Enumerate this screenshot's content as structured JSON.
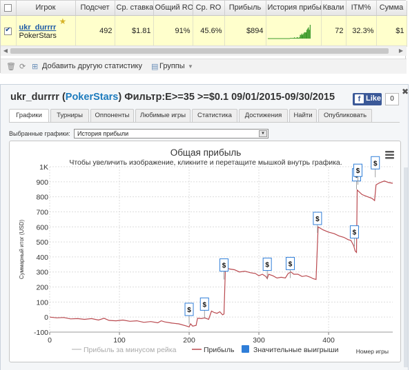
{
  "table": {
    "headers": [
      "",
      "Игрок",
      "Подсчет",
      "Ср. ставка",
      "Общий RO",
      "Ср. RO",
      "Прибыль",
      "История прибы",
      "Квали",
      "ITM%",
      "Сумма"
    ],
    "row": {
      "checked": true,
      "player": "ukr_durrrr",
      "site": "PokerStars",
      "count": "492",
      "avg_stake": "$1.81",
      "total_roi": "91%",
      "avg_roi": "45.6%",
      "profit": "$894",
      "qualified": "72",
      "itm": "32.3%",
      "sum": "$1"
    },
    "sparkline": [
      0,
      0,
      0,
      0,
      0,
      1,
      0,
      0,
      1,
      1,
      0,
      1,
      3,
      3,
      4,
      3,
      4,
      5,
      5,
      5,
      7,
      8,
      9,
      7,
      11
    ]
  },
  "toolbar": {
    "add_stats": "Добавить другую статистику",
    "groups": "Группы"
  },
  "panel": {
    "title_player": "ukr_durrrr",
    "title_site": "PokerStars",
    "title_filter": "Фильтр:E>=35 >=$0.1 09/01/2015-09/30/2015",
    "fb_like": "Like",
    "fb_count": "0",
    "tabs": [
      "Графики",
      "Турниры",
      "Оппоненты",
      "Любимые игры",
      "Статистика",
      "Достижения",
      "Найти",
      "Опубликовать"
    ],
    "active_tab": 0,
    "select_label": "Выбранные графики:",
    "select_value": "История прибыли"
  },
  "colors": {
    "profit_line": "#b9484e",
    "rake_line": "#c8c8c8",
    "marker": "#2f7ed8",
    "link": "#1d5aa6",
    "row_highlight": "#ffffcc"
  },
  "chart_data": {
    "type": "line",
    "title": "Общая прибыль",
    "subtitle": "Чтобы увеличить изображение, кликните и перетащите мышкой внутрь графика.",
    "xlabel": "Номер игры",
    "ylabel": "Суммарный итог (USD)",
    "xlim": [
      0,
      492
    ],
    "ylim": [
      -100,
      1000
    ],
    "x_ticks": [
      0,
      100,
      200,
      300,
      400
    ],
    "y_ticks": [
      -100,
      0,
      100,
      200,
      300,
      400,
      500,
      600,
      700,
      800,
      900,
      1000
    ],
    "y_tick_labels": [
      "-100",
      "0",
      "100",
      "200",
      "300",
      "400",
      "500",
      "600",
      "700",
      "800",
      "900",
      "1K"
    ],
    "grid": true,
    "legend": [
      "Прибыль за минусом рейка",
      "Прибыль",
      "Значительные выигрыши"
    ],
    "legend_position": "bottom",
    "series": [
      {
        "name": "Прибыль",
        "points": [
          [
            0,
            0
          ],
          [
            10,
            -5
          ],
          [
            20,
            -3
          ],
          [
            30,
            -12
          ],
          [
            40,
            -10
          ],
          [
            50,
            -15
          ],
          [
            60,
            -10
          ],
          [
            70,
            -20
          ],
          [
            78,
            -8
          ],
          [
            85,
            -22
          ],
          [
            95,
            -25
          ],
          [
            105,
            -20
          ],
          [
            115,
            -28
          ],
          [
            125,
            -25
          ],
          [
            135,
            -35
          ],
          [
            145,
            -30
          ],
          [
            155,
            -38
          ],
          [
            160,
            -25
          ],
          [
            165,
            -32
          ],
          [
            175,
            -40
          ],
          [
            185,
            -45
          ],
          [
            195,
            -58
          ],
          [
            200,
            -65
          ],
          [
            202,
            -45
          ],
          [
            205,
            -60
          ],
          [
            210,
            -55
          ],
          [
            212,
            -8
          ],
          [
            218,
            -10
          ],
          [
            222,
            -5
          ],
          [
            228,
            -15
          ],
          [
            232,
            40
          ],
          [
            236,
            30
          ],
          [
            240,
            25
          ],
          [
            244,
            35
          ],
          [
            248,
            15
          ],
          [
            250,
            20
          ],
          [
            252,
            330
          ],
          [
            258,
            320
          ],
          [
            265,
            315
          ],
          [
            272,
            300
          ],
          [
            280,
            305
          ],
          [
            288,
            295
          ],
          [
            295,
            290
          ],
          [
            300,
            275
          ],
          [
            305,
            285
          ],
          [
            310,
            270
          ],
          [
            312,
            255
          ],
          [
            314,
            285
          ],
          [
            320,
            275
          ],
          [
            326,
            260
          ],
          [
            332,
            265
          ],
          [
            338,
            260
          ],
          [
            342,
            290
          ],
          [
            346,
            300
          ],
          [
            350,
            285
          ],
          [
            356,
            285
          ],
          [
            362,
            270
          ],
          [
            368,
            275
          ],
          [
            374,
            265
          ],
          [
            378,
            255
          ],
          [
            382,
            250
          ],
          [
            385,
            600
          ],
          [
            392,
            580
          ],
          [
            400,
            565
          ],
          [
            408,
            555
          ],
          [
            415,
            540
          ],
          [
            422,
            530
          ],
          [
            428,
            515
          ],
          [
            432,
            510
          ],
          [
            436,
            475
          ],
          [
            438,
            440
          ],
          [
            440,
            430
          ],
          [
            441,
            845
          ],
          [
            448,
            815
          ],
          [
            456,
            800
          ],
          [
            462,
            790
          ],
          [
            466,
            775
          ],
          [
            468,
            880
          ],
          [
            474,
            895
          ],
          [
            480,
            905
          ],
          [
            486,
            895
          ],
          [
            492,
            890
          ]
        ]
      }
    ],
    "big_wins": [
      {
        "x": 200,
        "y": -45
      },
      {
        "x": 222,
        "y": -10
      },
      {
        "x": 250,
        "y": 250
      },
      {
        "x": 312,
        "y": 255
      },
      {
        "x": 345,
        "y": 260
      },
      {
        "x": 384,
        "y": 560
      },
      {
        "x": 437,
        "y": 470
      },
      {
        "x": 440,
        "y": 850
      },
      {
        "x": 442,
        "y": 880
      },
      {
        "x": 467,
        "y": 930
      }
    ]
  }
}
